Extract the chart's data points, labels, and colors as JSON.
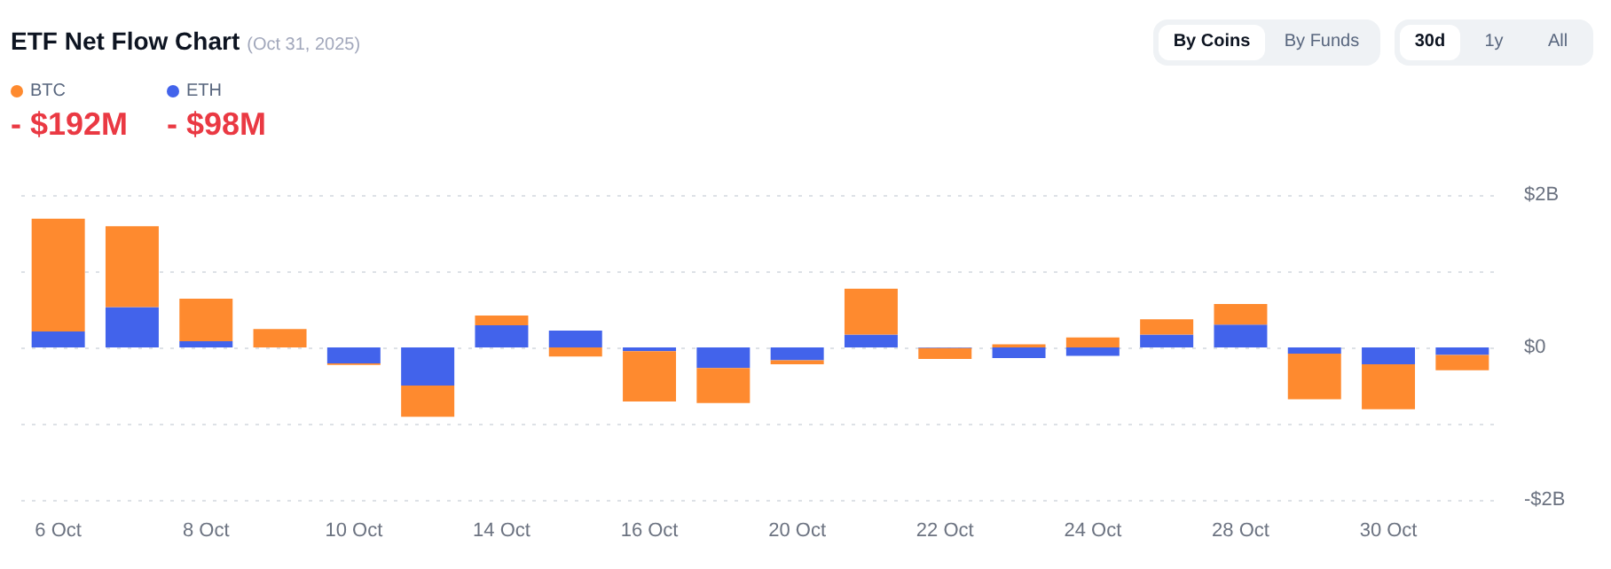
{
  "chart_data": {
    "type": "bar",
    "title": "ETF Net Flow Chart",
    "subtitle": "(Oct 31, 2025)",
    "categories": [
      "6 Oct",
      null,
      "8 Oct",
      null,
      "10 Oct",
      null,
      "14 Oct",
      null,
      "16 Oct",
      null,
      "20 Oct",
      null,
      "22 Oct",
      null,
      "24 Oct",
      null,
      "28 Oct",
      null,
      "30 Oct",
      null
    ],
    "series": [
      {
        "name": "ETH",
        "color": "#4263eb",
        "values": [
          0.21,
          0.53,
          0.08,
          0,
          -0.21,
          -0.5,
          0.29,
          0.22,
          -0.05,
          -0.27,
          -0.17,
          0.17,
          -0.01,
          -0.14,
          -0.11,
          0.17,
          0.3,
          -0.08,
          -0.22,
          -0.1
        ]
      },
      {
        "name": "BTC",
        "color": "#fe8a2f",
        "values": [
          1.48,
          1.06,
          0.56,
          0.24,
          -0.02,
          -0.41,
          0.13,
          -0.12,
          -0.66,
          -0.46,
          -0.05,
          0.6,
          -0.14,
          0.04,
          0.13,
          0.2,
          0.27,
          -0.6,
          -0.59,
          -0.2
        ]
      }
    ],
    "stacked": true,
    "ylim": [
      -2,
      2
    ],
    "yticks": [
      {
        "value": -2,
        "label": "-$2B"
      },
      {
        "value": -1,
        "label": null
      },
      {
        "value": 0,
        "label": "$0"
      },
      {
        "value": 1,
        "label": null
      },
      {
        "value": 2,
        "label": "$2B"
      }
    ],
    "grid": "y",
    "legend": "top left",
    "annotations": [
      "- $192M",
      "- $98M",
      "By Coins",
      "By Funds",
      "30d",
      "1y",
      "All"
    ]
  }
}
